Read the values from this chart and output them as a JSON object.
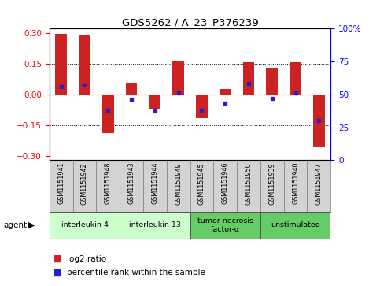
{
  "title": "GDS5262 / A_23_P376239",
  "samples": [
    "GSM1151941",
    "GSM1151942",
    "GSM1151948",
    "GSM1151943",
    "GSM1151944",
    "GSM1151949",
    "GSM1151945",
    "GSM1151946",
    "GSM1151950",
    "GSM1151939",
    "GSM1151940",
    "GSM1151947"
  ],
  "log2_ratio": [
    0.295,
    0.285,
    -0.19,
    0.055,
    -0.07,
    0.165,
    -0.115,
    0.025,
    0.155,
    0.13,
    0.155,
    -0.255
  ],
  "percentile": [
    56,
    57,
    38,
    46,
    38,
    51,
    38,
    43,
    58,
    47,
    51,
    30
  ],
  "groups": [
    {
      "label": "interleukin 4",
      "start": 0,
      "end": 2,
      "color": "#ccffcc"
    },
    {
      "label": "interleukin 13",
      "start": 3,
      "end": 5,
      "color": "#ccffcc"
    },
    {
      "label": "tumor necrosis\nfactor-α",
      "start": 6,
      "end": 8,
      "color": "#66cc66"
    },
    {
      "label": "unstimulated",
      "start": 9,
      "end": 11,
      "color": "#66cc66"
    }
  ],
  "ylim": [
    -0.32,
    0.32
  ],
  "yticks_left": [
    -0.3,
    -0.15,
    0,
    0.15,
    0.3
  ],
  "yticks_right": [
    0,
    25,
    50,
    75,
    100
  ],
  "bar_color": "#cc2222",
  "dot_color": "#2222cc",
  "legend_items": [
    "log2 ratio",
    "percentile rank within the sample"
  ]
}
